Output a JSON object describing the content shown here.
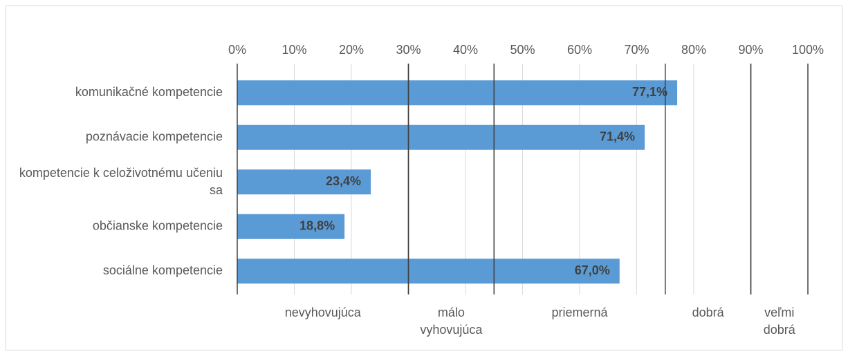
{
  "chart_data": {
    "type": "bar",
    "orientation": "horizontal",
    "categories": [
      "komunikačné kompetencie",
      "poznávacie kompetencie",
      "kompetencie k celoživotnému učeniu sa",
      "občianske kompetencie",
      "sociálne kompetencie"
    ],
    "values": [
      77.1,
      71.4,
      23.4,
      18.8,
      67.0
    ],
    "value_labels": [
      "77,1%",
      "71,4%",
      "23,4%",
      "18,8%",
      "67,0%"
    ],
    "color": "#5b9bd5",
    "xlim": [
      0,
      100
    ],
    "xticks": [
      {
        "value": 0,
        "label": "0%"
      },
      {
        "value": 10,
        "label": "10%"
      },
      {
        "value": 20,
        "label": "20%"
      },
      {
        "value": 30,
        "label": "30%"
      },
      {
        "value": 40,
        "label": "40%"
      },
      {
        "value": 50,
        "label": "50%"
      },
      {
        "value": 60,
        "label": "60%"
      },
      {
        "value": 70,
        "label": "70%"
      },
      {
        "value": 80,
        "label": "80%"
      },
      {
        "value": 90,
        "label": "90%"
      },
      {
        "value": 100,
        "label": "100%"
      }
    ],
    "grid": true,
    "zones": [
      {
        "label": "nevyhovujúca",
        "from": 0,
        "to": 30
      },
      {
        "label": "málo vyhovujúca",
        "from": 30,
        "to": 45
      },
      {
        "label": "priemerná",
        "from": 45,
        "to": 75
      },
      {
        "label": "dobrá",
        "from": 75,
        "to": 90
      },
      {
        "label": "veľmi dobrá",
        "from": 90,
        "to": 100
      }
    ]
  }
}
